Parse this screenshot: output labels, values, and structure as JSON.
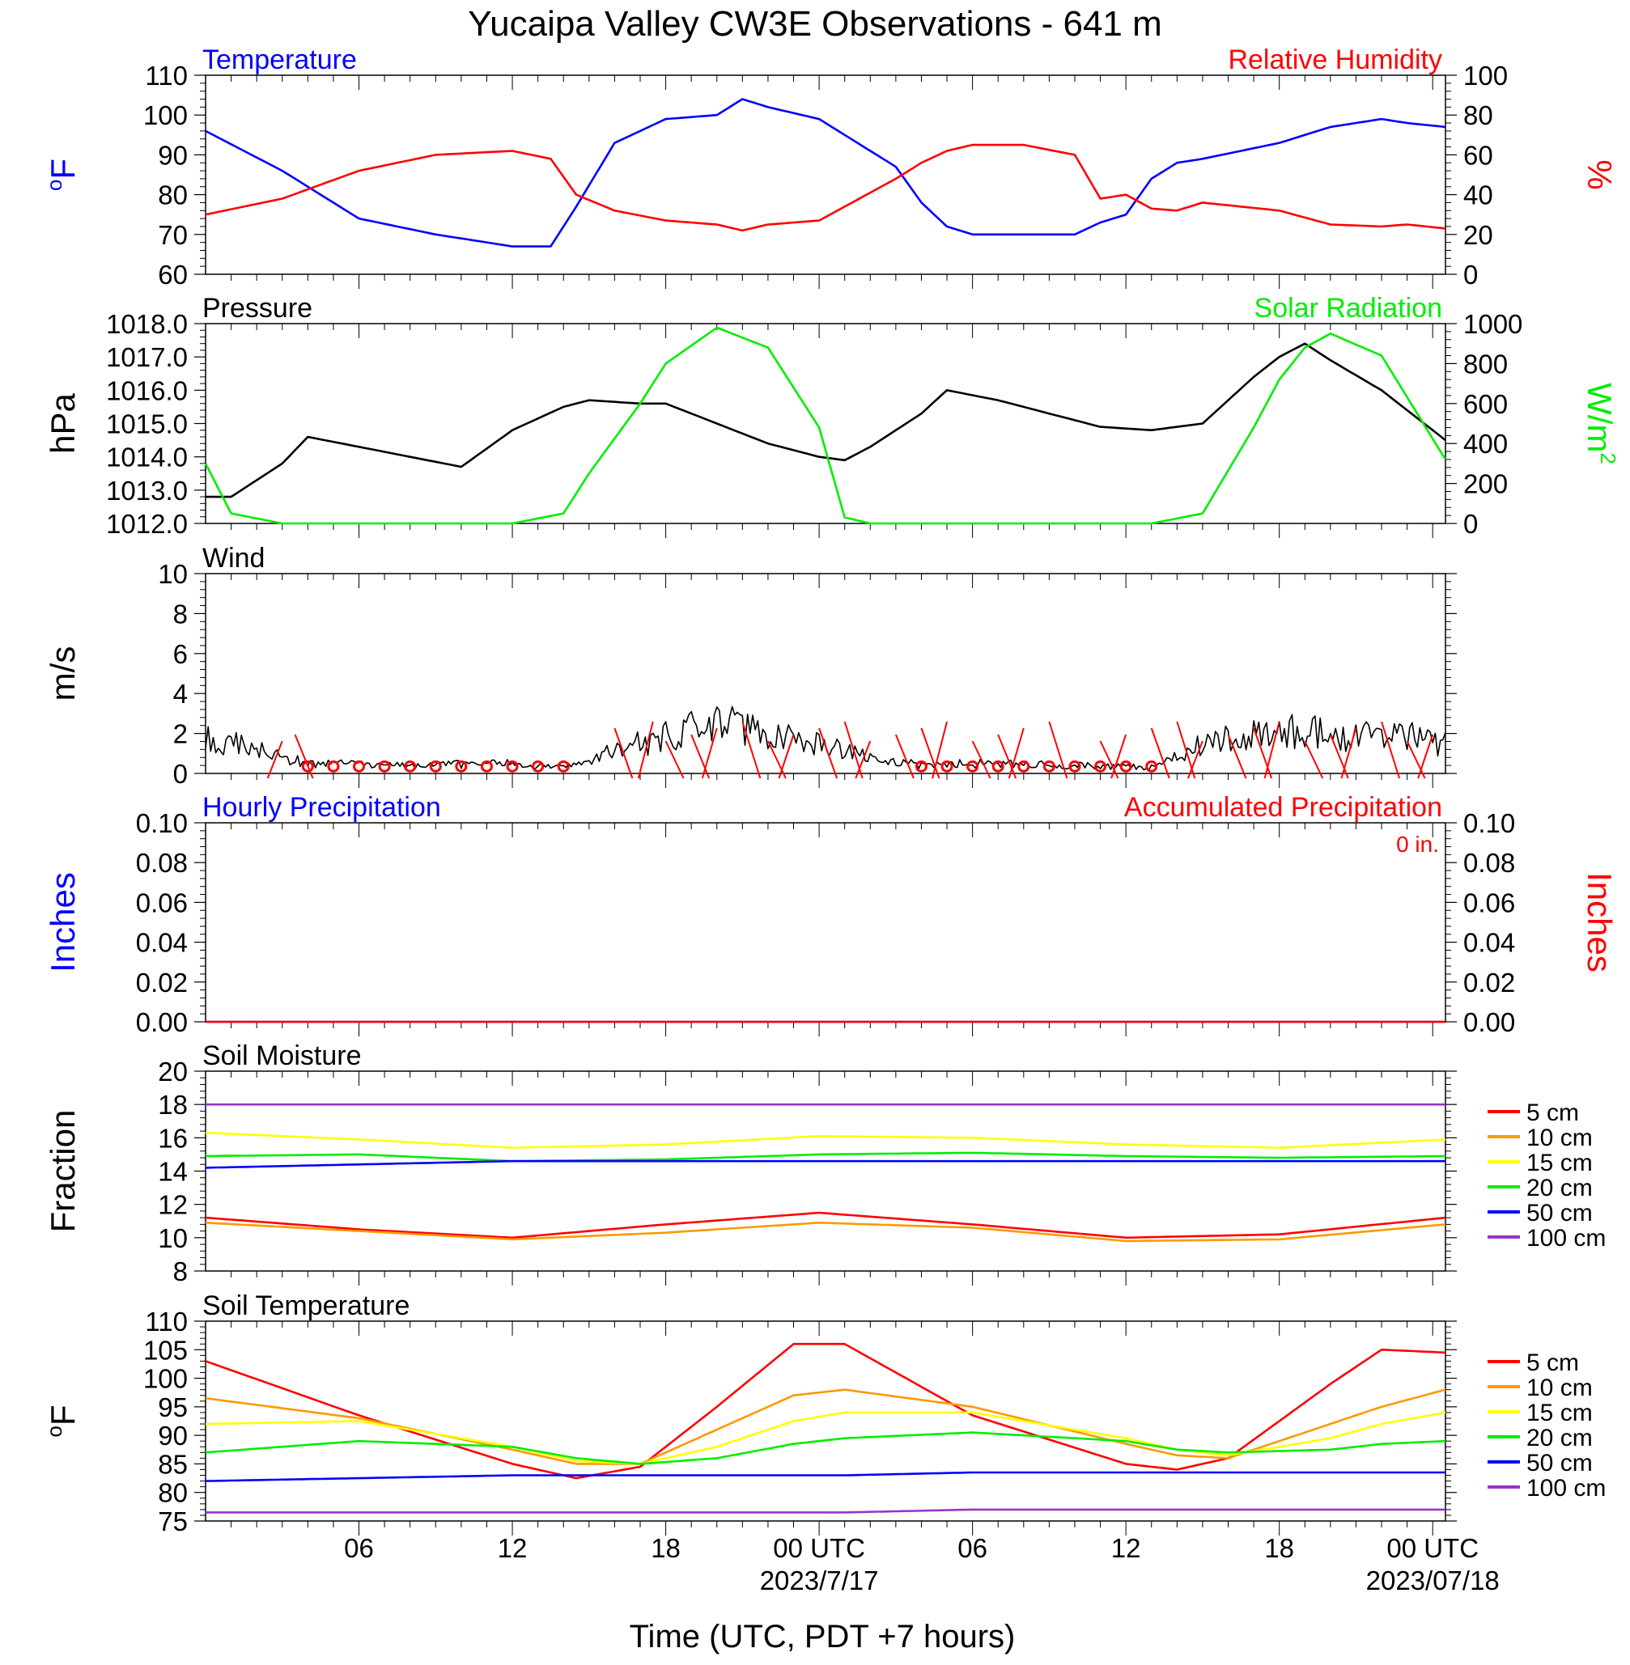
{
  "title": "Yucaipa Valley CW3E Observations - 641 m",
  "xlabel": "Time (UTC, PDT +7 hours)",
  "x_ticks": [
    "06",
    "12",
    "18",
    "00 UTC",
    "06",
    "12",
    "18",
    "00 UTC"
  ],
  "x_dates": [
    "2023/7/17",
    "2023/07/18"
  ],
  "colors": {
    "blue": "#0000ff",
    "red": "#ff0000",
    "green": "#00ee00",
    "black": "#000000",
    "orange": "#ff9900",
    "yellow": "#ffff00",
    "purple": "#9933cc"
  },
  "chart_data": [
    {
      "type": "line",
      "title": "",
      "left_label": "Temperature",
      "right_label": "Relative Humidity",
      "ylabel": "oF",
      "ylabel_right": "%",
      "ylim": [
        60,
        110
      ],
      "ylim_right": [
        0,
        100
      ],
      "y_ticks": [
        "60",
        "70",
        "80",
        "90",
        "100",
        "110"
      ],
      "y_ticks_right": [
        "0",
        "20",
        "40",
        "60",
        "80",
        "100"
      ],
      "x_hours": [
        0,
        3,
        6,
        9,
        12,
        13.5,
        14.5,
        16,
        18,
        20,
        21,
        22,
        24,
        27,
        28,
        29,
        30,
        32,
        34,
        35,
        36,
        37,
        38,
        39,
        42,
        44,
        46,
        47,
        48.5
      ],
      "series": [
        {
          "name": "Temperature",
          "axis": "left",
          "values": [
            96,
            86,
            74,
            70,
            67,
            67,
            77,
            93,
            99,
            100,
            104,
            102,
            99,
            87,
            78,
            72,
            70,
            70,
            70,
            73,
            75,
            84,
            88,
            89,
            93,
            97,
            99,
            98,
            97
          ]
        },
        {
          "name": "Relative Humidity",
          "axis": "right",
          "values": [
            30,
            38,
            52,
            60,
            62,
            58,
            40,
            32,
            27,
            25,
            22,
            25,
            27,
            48,
            56,
            62,
            65,
            65,
            60,
            38,
            40,
            33,
            32,
            36,
            32,
            25,
            24,
            25,
            23
          ]
        }
      ]
    },
    {
      "type": "line",
      "title": "",
      "left_label": "Pressure",
      "right_label": "Solar Radiation",
      "ylabel": "hPa",
      "ylabel_right": "W/m2",
      "ylim": [
        1012,
        1018
      ],
      "ylim_right": [
        0,
        1000
      ],
      "y_ticks": [
        "1012.0",
        "1013.0",
        "1014.0",
        "1015.0",
        "1016.0",
        "1017.0",
        "1018.0"
      ],
      "y_ticks_right": [
        "0",
        "200",
        "400",
        "600",
        "800",
        "1000"
      ],
      "x_hours": [
        0,
        1,
        3,
        4,
        6,
        8,
        10,
        12,
        14,
        15,
        17,
        18,
        20,
        22,
        24,
        25,
        26,
        28,
        29,
        31,
        33,
        35,
        37,
        39,
        41,
        42,
        43,
        44,
        46,
        48.5
      ],
      "series": [
        {
          "name": "Pressure",
          "axis": "left",
          "values": [
            1012.8,
            1012.8,
            1013.8,
            1014.6,
            1014.3,
            1014.0,
            1013.7,
            1014.8,
            1015.5,
            1015.7,
            1015.6,
            1015.6,
            1015.0,
            1014.4,
            1014.0,
            1013.9,
            1014.3,
            1015.3,
            1016.0,
            1015.7,
            1015.3,
            1014.9,
            1014.8,
            1015.0,
            1016.4,
            1017.0,
            1017.4,
            1016.9,
            1016.0,
            1014.5
          ]
        },
        {
          "name": "Solar Radiation",
          "axis": "right",
          "values": [
            300,
            50,
            0,
            0,
            0,
            0,
            0,
            0,
            50,
            250,
            600,
            800,
            980,
            880,
            480,
            30,
            0,
            0,
            0,
            0,
            0,
            0,
            0,
            50,
            480,
            720,
            880,
            950,
            840,
            320
          ]
        }
      ]
    },
    {
      "type": "line",
      "title": "",
      "left_label": "Wind",
      "ylabel": "m/s",
      "ylim": [
        0,
        10
      ],
      "y_ticks": [
        "0",
        "2",
        "4",
        "6",
        "8",
        "10"
      ],
      "x_hours": [
        0,
        2,
        4,
        8,
        12,
        14,
        16,
        18,
        19,
        20,
        21,
        22,
        24,
        26,
        28,
        30,
        34,
        37,
        39,
        41,
        42,
        44,
        46,
        47,
        48.5
      ],
      "series": [
        {
          "name": "Wind Speed",
          "axis": "left",
          "values": [
            1.8,
            1.2,
            0.5,
            0.4,
            0.5,
            0.3,
            1.2,
            1.8,
            2.6,
            2.5,
            2.2,
            2.1,
            1.4,
            0.8,
            0.4,
            0.5,
            0.4,
            0.3,
            1.4,
            2.0,
            2.3,
            2.0,
            1.8,
            1.9,
            1.5
          ]
        }
      ],
      "barbs_x_hours": [
        3,
        3.5,
        16,
        17.5,
        18,
        19,
        20,
        21,
        22,
        23,
        24,
        25,
        26,
        27,
        28,
        29,
        30,
        31,
        32,
        33,
        35,
        36,
        37,
        38,
        39,
        40,
        41,
        42,
        43,
        44,
        45,
        46,
        47,
        48
      ],
      "calm_x_hours": [
        4,
        5,
        6,
        7,
        8,
        9,
        10,
        11,
        12,
        13,
        14,
        28,
        29,
        30,
        31,
        32,
        33,
        34,
        35,
        36,
        37
      ]
    },
    {
      "type": "line",
      "title": "",
      "left_label": "Hourly Precipitation",
      "right_label": "Accumulated Precipitation",
      "annotation": "0 in.",
      "ylabel": "Inches",
      "ylabel_right": "Inches",
      "ylim": [
        0,
        0.1
      ],
      "ylim_right": [
        0,
        0.1
      ],
      "y_ticks": [
        "0.00",
        "0.02",
        "0.04",
        "0.06",
        "0.08",
        "0.10"
      ],
      "y_ticks_right": [
        "0.00",
        "0.02",
        "0.04",
        "0.06",
        "0.08",
        "0.10"
      ],
      "x_hours": [
        0,
        48.5
      ],
      "series": [
        {
          "name": "Hourly Precipitation",
          "axis": "left",
          "values": [
            0,
            0
          ]
        },
        {
          "name": "Accumulated Precipitation",
          "axis": "right",
          "values": [
            0,
            0
          ]
        }
      ]
    },
    {
      "type": "line",
      "title": "",
      "left_label": "Soil Moisture",
      "ylabel": "Fraction",
      "ylim": [
        8,
        20
      ],
      "y_ticks": [
        "8",
        "10",
        "12",
        "14",
        "16",
        "18",
        "20"
      ],
      "x_hours": [
        0,
        6,
        12,
        18,
        24,
        30,
        36,
        42,
        48.5
      ],
      "legend": [
        "5 cm",
        "10 cm",
        "15 cm",
        "20 cm",
        "50 cm",
        "100 cm"
      ],
      "series": [
        {
          "name": "5 cm",
          "values": [
            11.2,
            10.5,
            10.0,
            10.8,
            11.5,
            10.8,
            10.0,
            10.2,
            11.2
          ]
        },
        {
          "name": "10 cm",
          "values": [
            10.9,
            10.4,
            9.9,
            10.3,
            10.9,
            10.6,
            9.8,
            9.9,
            10.8
          ]
        },
        {
          "name": "15 cm",
          "values": [
            16.3,
            15.9,
            15.4,
            15.6,
            16.1,
            16.0,
            15.6,
            15.4,
            15.9
          ]
        },
        {
          "name": "20 cm",
          "values": [
            14.9,
            15.0,
            14.6,
            14.7,
            15.0,
            15.1,
            14.9,
            14.8,
            14.9
          ]
        },
        {
          "name": "50 cm",
          "values": [
            14.2,
            14.4,
            14.6,
            14.6,
            14.6,
            14.6,
            14.6,
            14.6,
            14.6
          ]
        },
        {
          "name": "100 cm",
          "values": [
            18.0,
            18.0,
            18.0,
            18.0,
            18.0,
            18.0,
            18.0,
            18.0,
            18.0
          ]
        }
      ]
    },
    {
      "type": "line",
      "title": "",
      "left_label": "Soil Temperature",
      "ylabel": "oF",
      "ylim": [
        75,
        110
      ],
      "y_ticks": [
        "75",
        "80",
        "85",
        "90",
        "95",
        "100",
        "105",
        "110"
      ],
      "x_hours": [
        0,
        6,
        12,
        14.5,
        17,
        20,
        23,
        25,
        30,
        36,
        38,
        40,
        44,
        46,
        48.5
      ],
      "legend": [
        "5 cm",
        "10 cm",
        "15 cm",
        "20 cm",
        "50 cm",
        "100 cm"
      ],
      "series": [
        {
          "name": "5 cm",
          "values": [
            103,
            93.5,
            85,
            82.5,
            84.5,
            95,
            106,
            106,
            93.5,
            85,
            84,
            86,
            99,
            105,
            104.5
          ]
        },
        {
          "name": "10 cm",
          "values": [
            96.5,
            93,
            87.5,
            85,
            85,
            91,
            97,
            98,
            95,
            88.5,
            86.5,
            86,
            92,
            95,
            98
          ]
        },
        {
          "name": "15 cm",
          "values": [
            92,
            92.5,
            88,
            85.5,
            85,
            88,
            92.5,
            94,
            94,
            89.5,
            87.5,
            86.5,
            89.5,
            92,
            94
          ]
        },
        {
          "name": "20 cm",
          "values": [
            87,
            89,
            88,
            86,
            85,
            86,
            88.5,
            89.5,
            90.5,
            89,
            87.5,
            87,
            87.5,
            88.5,
            89
          ]
        },
        {
          "name": "50 cm",
          "values": [
            82,
            82.5,
            83,
            83,
            83,
            83,
            83,
            83,
            83.5,
            83.5,
            83.5,
            83.5,
            83.5,
            83.5,
            83.5
          ]
        },
        {
          "name": "100 cm",
          "values": [
            76.5,
            76.5,
            76.5,
            76.5,
            76.5,
            76.5,
            76.5,
            76.5,
            77,
            77,
            77,
            77,
            77,
            77,
            77
          ]
        }
      ]
    }
  ]
}
